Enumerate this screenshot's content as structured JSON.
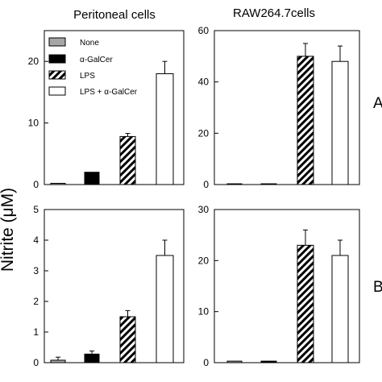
{
  "chart_data": {
    "type": "bar",
    "ylabel": "Nitrite (μM)",
    "categories": [
      "None",
      "α-GalCer",
      "LPS",
      "LPS + α-GalCer"
    ],
    "legend": {
      "placement": "top-left",
      "entries": [
        {
          "label": "None",
          "fill": "gray"
        },
        {
          "label": "α-GalCer",
          "fill": "black"
        },
        {
          "label": "LPS",
          "fill": "hatched"
        },
        {
          "label": "LPS + α-GalCer",
          "fill": "white"
        }
      ]
    },
    "colors": {
      "none": "#a6a6a6",
      "galcer": "#000000",
      "lps": "hatched",
      "both": "#ffffff"
    },
    "panels": [
      {
        "column_title": "Peritoneal cells",
        "row_label": "",
        "ylim": [
          0,
          25
        ],
        "yticks": [
          "0",
          "10",
          "20"
        ],
        "values": [
          0.2,
          2.0,
          7.8,
          18.0
        ],
        "errors": [
          0,
          0,
          0.5,
          2.0
        ]
      },
      {
        "column_title": "RAW264.7cells",
        "row_label": "A",
        "ylim": [
          0,
          60
        ],
        "yticks": [
          "0",
          "20",
          "40",
          "60"
        ],
        "values": [
          0.3,
          0.3,
          50,
          48
        ],
        "errors": [
          0,
          0,
          5,
          6
        ]
      },
      {
        "column_title": "",
        "row_label": "",
        "ylim": [
          0,
          5
        ],
        "yticks": [
          "0",
          "1",
          "2",
          "3",
          "4",
          "5"
        ],
        "values": [
          0.08,
          0.28,
          1.5,
          3.5
        ],
        "errors": [
          0.1,
          0.1,
          0.2,
          0.5
        ]
      },
      {
        "column_title": "",
        "row_label": "B",
        "ylim": [
          0,
          30
        ],
        "yticks": [
          "0",
          "10",
          "20",
          "30"
        ],
        "values": [
          0.3,
          0.3,
          23,
          21
        ],
        "errors": [
          0,
          0,
          3,
          3
        ]
      }
    ]
  }
}
